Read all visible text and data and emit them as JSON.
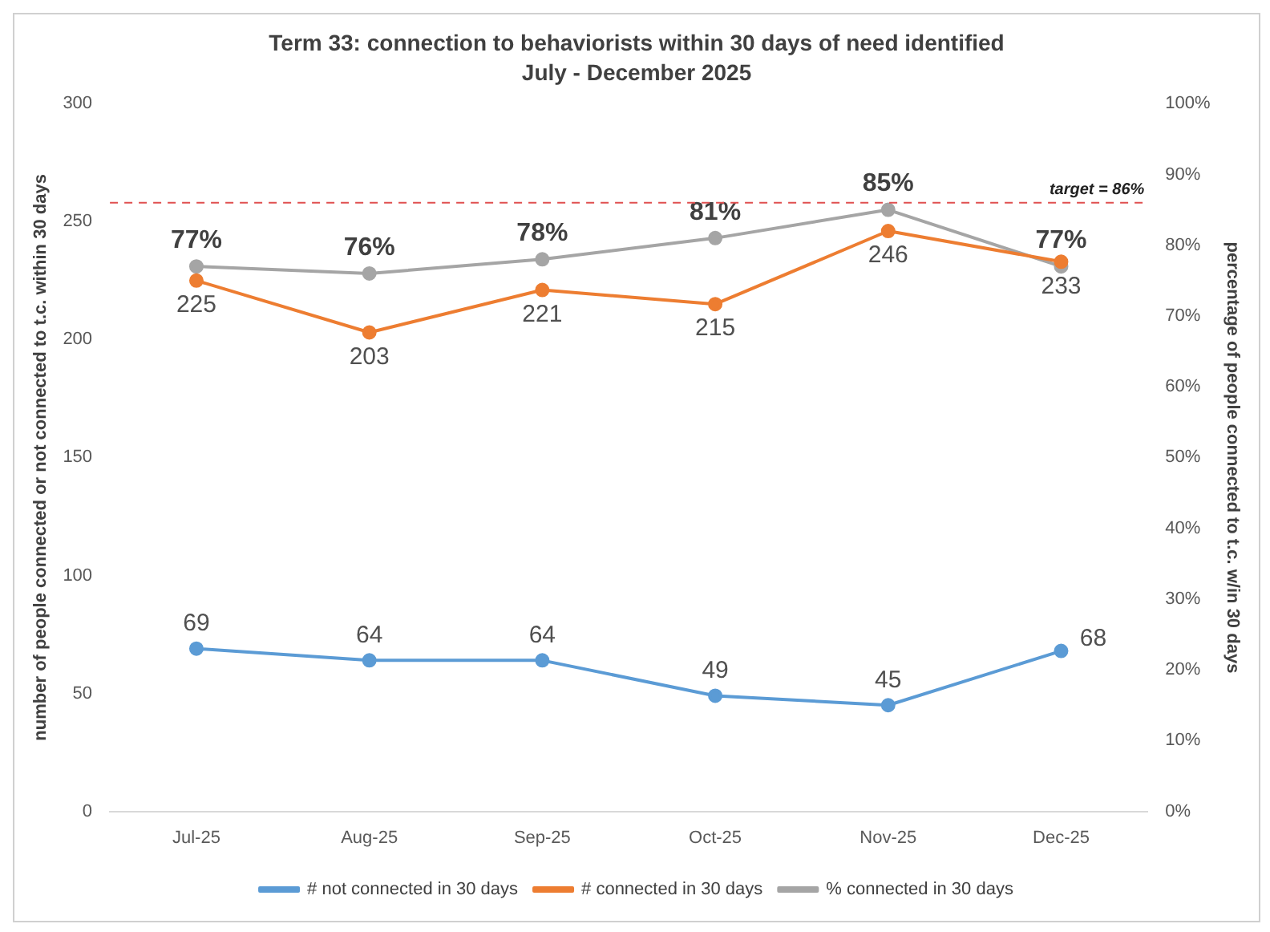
{
  "chart_data": {
    "type": "line",
    "title": "Term 33: connection to behaviorists within 30 days of need identified",
    "subtitle": "July - December 2025",
    "ylabel": "number of people connected or not connected to t.c. within 30 days",
    "y2label": "percentage of people connected to t.c. w/in 30 days",
    "categories": [
      "Jul-25",
      "Aug-25",
      "Sep-25",
      "Oct-25",
      "Nov-25",
      "Dec-25"
    ],
    "series": [
      {
        "name": "# not connected in 30 days",
        "color": "#5b9bd5",
        "values": [
          69,
          64,
          64,
          49,
          45,
          68
        ],
        "value_labels": [
          "69",
          "64",
          "64",
          "49",
          "45",
          "68"
        ]
      },
      {
        "name": "# connected in 30 days",
        "color": "#ed7d31",
        "values": [
          225,
          203,
          221,
          215,
          246,
          233
        ],
        "value_labels": [
          "225",
          "203",
          "221",
          "215",
          "246",
          "233"
        ]
      },
      {
        "name": "% connected in 30 days",
        "color": "#a5a5a5",
        "axis": "y2",
        "values": [
          77,
          76,
          78,
          81,
          85,
          77
        ],
        "value_labels": [
          "77%",
          "76%",
          "78%",
          "81%",
          "85%",
          "77%"
        ]
      }
    ],
    "ylim": [
      0,
      300
    ],
    "yticks": [
      0,
      50,
      100,
      150,
      200,
      250,
      300
    ],
    "y2lim": [
      0,
      100
    ],
    "y2ticks": [
      {
        "value": 0,
        "label": "0%"
      },
      {
        "value": 10,
        "label": "10%"
      },
      {
        "value": 20,
        "label": "20%"
      },
      {
        "value": 30,
        "label": "30%"
      },
      {
        "value": 40,
        "label": "40%"
      },
      {
        "value": 50,
        "label": "50%"
      },
      {
        "value": 60,
        "label": "60%"
      },
      {
        "value": 70,
        "label": "70%"
      },
      {
        "value": 80,
        "label": "80%"
      },
      {
        "value": 90,
        "label": "90%"
      },
      {
        "value": 100,
        "label": "100%"
      }
    ],
    "ref_lines": [
      {
        "axis": "y2",
        "value": 86,
        "label": "target = 86%",
        "color": "#e05050",
        "line_style": "dashed"
      }
    ],
    "grid": false,
    "legend": "bottom",
    "marker": "circle",
    "line_style": "solid"
  }
}
